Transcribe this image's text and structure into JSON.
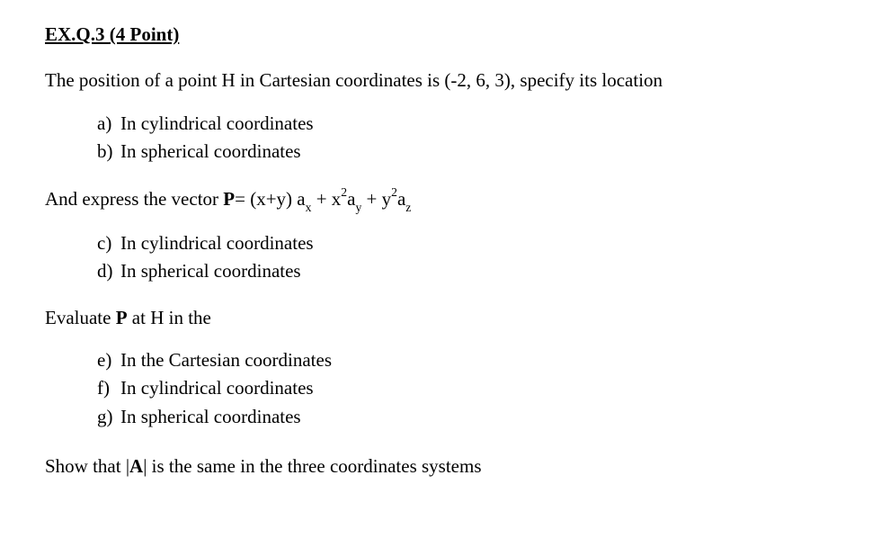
{
  "heading": "EX.Q.3 (4 Point)",
  "para1": "The position of a point H in Cartesian coordinates is (-2, 6, 3), specify its location",
  "list1": {
    "a": {
      "marker": "a)",
      "text": "In cylindrical  coordinates"
    },
    "b": {
      "marker": "b)",
      "text": "In spherical coordinates"
    }
  },
  "vectorLine": {
    "prefix": "And express the vector ",
    "Peq": "P",
    "eq": "= (x+y) a",
    "subx": "x",
    "plus1": " + x",
    "sup2a": "2",
    "ay": "a",
    "suby": "y",
    "plus2": " + y",
    "sup2b": "2",
    "az": "a",
    "subz": "z"
  },
  "list2": {
    "c": {
      "marker": "c)",
      "text": "In cylindrical  coordinates"
    },
    "d": {
      "marker": "d)",
      "text": "In spherical coordinates"
    }
  },
  "para3_prefix": "Evaluate ",
  "para3_P": "P",
  "para3_suffix": " at H in the",
  "list3": {
    "e": {
      "marker": "e)",
      "text": "In the Cartesian coordinates"
    },
    "f": {
      "marker": "f)",
      "text": "In cylindrical  coordinates"
    },
    "g": {
      "marker": "g)",
      "text": "In spherical coordinates"
    }
  },
  "para4_prefix": "Show that |",
  "para4_A": "A",
  "para4_suffix": "| is the same in the three coordinates systems"
}
